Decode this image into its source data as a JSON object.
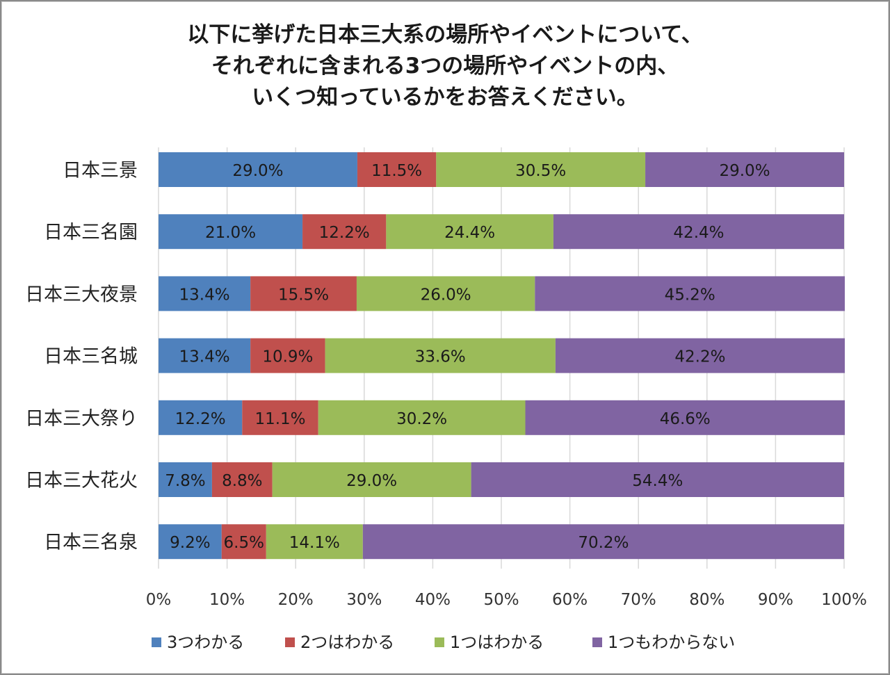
{
  "chart_data": {
    "type": "bar",
    "orientation": "horizontal",
    "stacked": true,
    "title_lines": [
      "以下に挙げた日本三大系の場所やイベントについて、",
      "それぞれに含まれる3つの場所やイベントの内、",
      "いくつ知っているかをお答えください。"
    ],
    "categories": [
      "日本三景",
      "日本三名園",
      "日本三大夜景",
      "日本三名城",
      "日本三大祭り",
      "日本三大花火",
      "日本三名泉"
    ],
    "series": [
      {
        "name": "3つわかる",
        "color": "#4F81BD",
        "values": [
          29.0,
          21.0,
          13.4,
          13.4,
          12.2,
          7.8,
          9.2
        ]
      },
      {
        "name": "2つはわかる",
        "color": "#C0504D",
        "values": [
          11.5,
          12.2,
          15.5,
          10.9,
          11.1,
          8.8,
          6.5
        ]
      },
      {
        "name": "1つはわかる",
        "color": "#9BBB59",
        "values": [
          30.5,
          24.4,
          26.0,
          33.6,
          30.2,
          29.0,
          14.1
        ]
      },
      {
        "name": "1つもわからない",
        "color": "#8064A2",
        "values": [
          29.0,
          42.4,
          45.2,
          42.2,
          46.6,
          54.4,
          70.2
        ]
      }
    ],
    "xlim": [
      0,
      100
    ],
    "x_ticks": [
      "0%",
      "10%",
      "20%",
      "30%",
      "40%",
      "50%",
      "60%",
      "70%",
      "80%",
      "90%",
      "100%"
    ],
    "value_suffix": "%",
    "grid": true,
    "legend_position": "bottom"
  }
}
